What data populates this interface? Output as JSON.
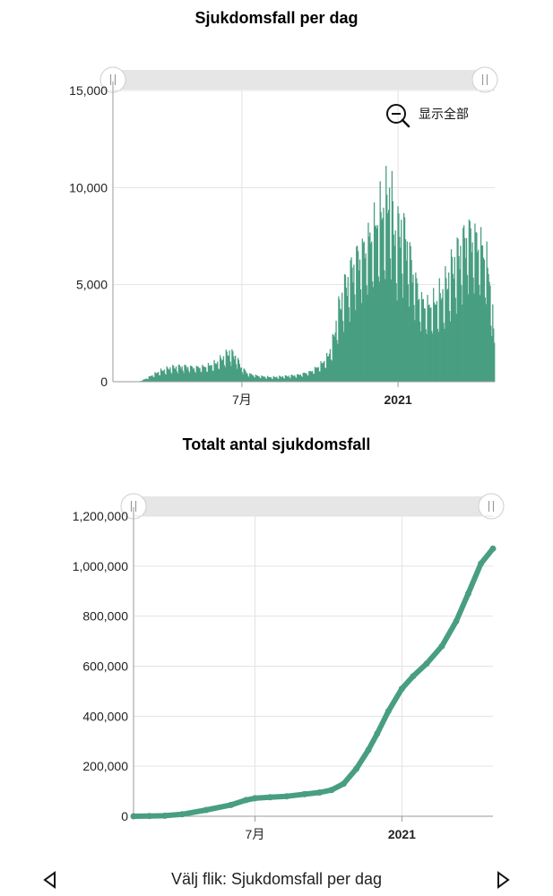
{
  "colors": {
    "series": "#489e80",
    "grid": "#e3e3e3",
    "axis": "#9a9a9a",
    "scroll_track": "#e6e6e6"
  },
  "zoom": {
    "label": "显示全部",
    "icon": "zoom-out-icon"
  },
  "footer": {
    "tab_label": "Välj flik: Sjukdomsfall per dag",
    "prev_icon": "chevron-left-icon",
    "next_icon": "chevron-right-icon"
  },
  "chart_data": [
    {
      "type": "bar",
      "title": "Sjukdomsfall per dag",
      "xlabel": "",
      "ylabel": "",
      "ylim": [
        0,
        15000
      ],
      "yticks": [
        0,
        5000,
        10000,
        15000
      ],
      "ytick_labels": [
        "0",
        "5,000",
        "10,000",
        "15,000"
      ],
      "xlim": [
        "2020-01-31",
        "2021-04-25"
      ],
      "xticks": [
        {
          "date": "2020-07-01",
          "label": "7月",
          "bold": false
        },
        {
          "date": "2021-01-01",
          "label": "2021",
          "bold": true
        }
      ],
      "grid": true,
      "legend": "none",
      "anchors": [
        [
          "2020-01-31",
          0
        ],
        [
          "2020-03-01",
          10
        ],
        [
          "2020-03-08",
          120
        ],
        [
          "2020-03-15",
          280
        ],
        [
          "2020-03-25",
          500
        ],
        [
          "2020-04-08",
          680
        ],
        [
          "2020-04-22",
          750
        ],
        [
          "2020-05-06",
          700
        ],
        [
          "2020-05-20",
          750
        ],
        [
          "2020-05-31",
          900
        ],
        [
          "2020-06-08",
          1150
        ],
        [
          "2020-06-16",
          1450
        ],
        [
          "2020-06-24",
          1200
        ],
        [
          "2020-06-30",
          700
        ],
        [
          "2020-07-08",
          400
        ],
        [
          "2020-07-20",
          280
        ],
        [
          "2020-08-05",
          220
        ],
        [
          "2020-08-20",
          260
        ],
        [
          "2020-09-05",
          330
        ],
        [
          "2020-09-20",
          500
        ],
        [
          "2020-10-01",
          800
        ],
        [
          "2020-10-10",
          1200
        ],
        [
          "2020-10-16",
          1900
        ],
        [
          "2020-10-22",
          3300
        ],
        [
          "2020-10-28",
          4300
        ],
        [
          "2020-11-05",
          5200
        ],
        [
          "2020-11-12",
          6000
        ],
        [
          "2020-11-20",
          6400
        ],
        [
          "2020-11-28",
          7000
        ],
        [
          "2020-12-05",
          7600
        ],
        [
          "2020-12-12",
          8200
        ],
        [
          "2020-12-18",
          8600
        ],
        [
          "2020-12-23",
          9200
        ],
        [
          "2020-12-29",
          7000
        ],
        [
          "2021-01-05",
          7600
        ],
        [
          "2021-01-12",
          6800
        ],
        [
          "2021-01-20",
          5200
        ],
        [
          "2021-01-28",
          4000
        ],
        [
          "2021-02-05",
          3700
        ],
        [
          "2021-02-15",
          3900
        ],
        [
          "2021-02-25",
          4500
        ],
        [
          "2021-03-05",
          5400
        ],
        [
          "2021-03-15",
          6400
        ],
        [
          "2021-03-25",
          7300
        ],
        [
          "2021-04-01",
          7100
        ],
        [
          "2021-04-08",
          6800
        ],
        [
          "2021-04-15",
          6100
        ],
        [
          "2021-04-20",
          4800
        ],
        [
          "2021-04-25",
          2000
        ]
      ]
    },
    {
      "type": "line",
      "title": "Totalt antal sjukdomsfall",
      "xlabel": "",
      "ylabel": "",
      "ylim": [
        0,
        1200000
      ],
      "yticks": [
        0,
        200000,
        400000,
        600000,
        800000,
        1000000,
        1200000
      ],
      "ytick_labels": [
        "0",
        "200,000",
        "400,000",
        "600,000",
        "800,000",
        "1,000,000",
        "1,200,000"
      ],
      "xlim": [
        "2020-01-31",
        "2021-04-25"
      ],
      "xticks": [
        {
          "date": "2020-07-01",
          "label": "7月",
          "bold": false
        },
        {
          "date": "2021-01-01",
          "label": "2021",
          "bold": true
        }
      ],
      "grid": true,
      "legend": "none",
      "x": [
        "2020-01-31",
        "2020-02-20",
        "2020-03-10",
        "2020-04-01",
        "2020-05-01",
        "2020-06-01",
        "2020-06-20",
        "2020-07-01",
        "2020-07-20",
        "2020-08-10",
        "2020-09-01",
        "2020-09-20",
        "2020-10-05",
        "2020-10-20",
        "2020-11-05",
        "2020-11-20",
        "2020-12-01",
        "2020-12-15",
        "2021-01-01",
        "2021-01-15",
        "2021-02-01",
        "2021-02-20",
        "2021-03-10",
        "2021-03-25",
        "2021-04-10",
        "2021-04-25"
      ],
      "values": [
        0,
        1000,
        2000,
        8000,
        25000,
        45000,
        65000,
        72000,
        76000,
        80000,
        88000,
        95000,
        105000,
        130000,
        190000,
        265000,
        330000,
        420000,
        510000,
        560000,
        610000,
        680000,
        780000,
        890000,
        1010000,
        1070000
      ]
    }
  ]
}
